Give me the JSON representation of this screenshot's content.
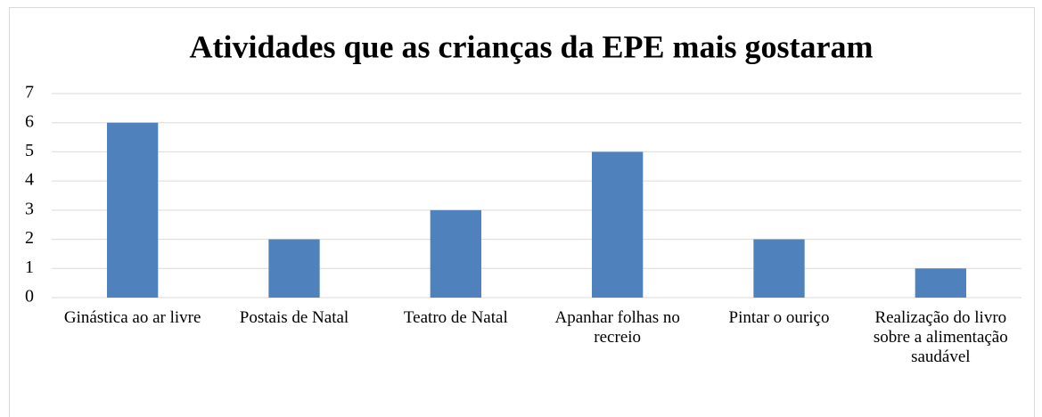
{
  "chart_data": {
    "type": "bar",
    "title": "Atividades que as crianças da EPE mais gostaram",
    "categories": [
      "Ginástica ao ar livre",
      "Postais de Natal",
      "Teatro de Natal",
      "Apanhar folhas no recreio",
      "Pintar o ouriço",
      "Realização do livro sobre a alimentação saudável"
    ],
    "values": [
      6,
      2,
      3,
      5,
      2,
      1
    ],
    "color": "#4f81bd",
    "ylim": [
      0,
      7
    ],
    "yticks": [
      0,
      1,
      2,
      3,
      4,
      5,
      6,
      7
    ],
    "grid": true
  }
}
